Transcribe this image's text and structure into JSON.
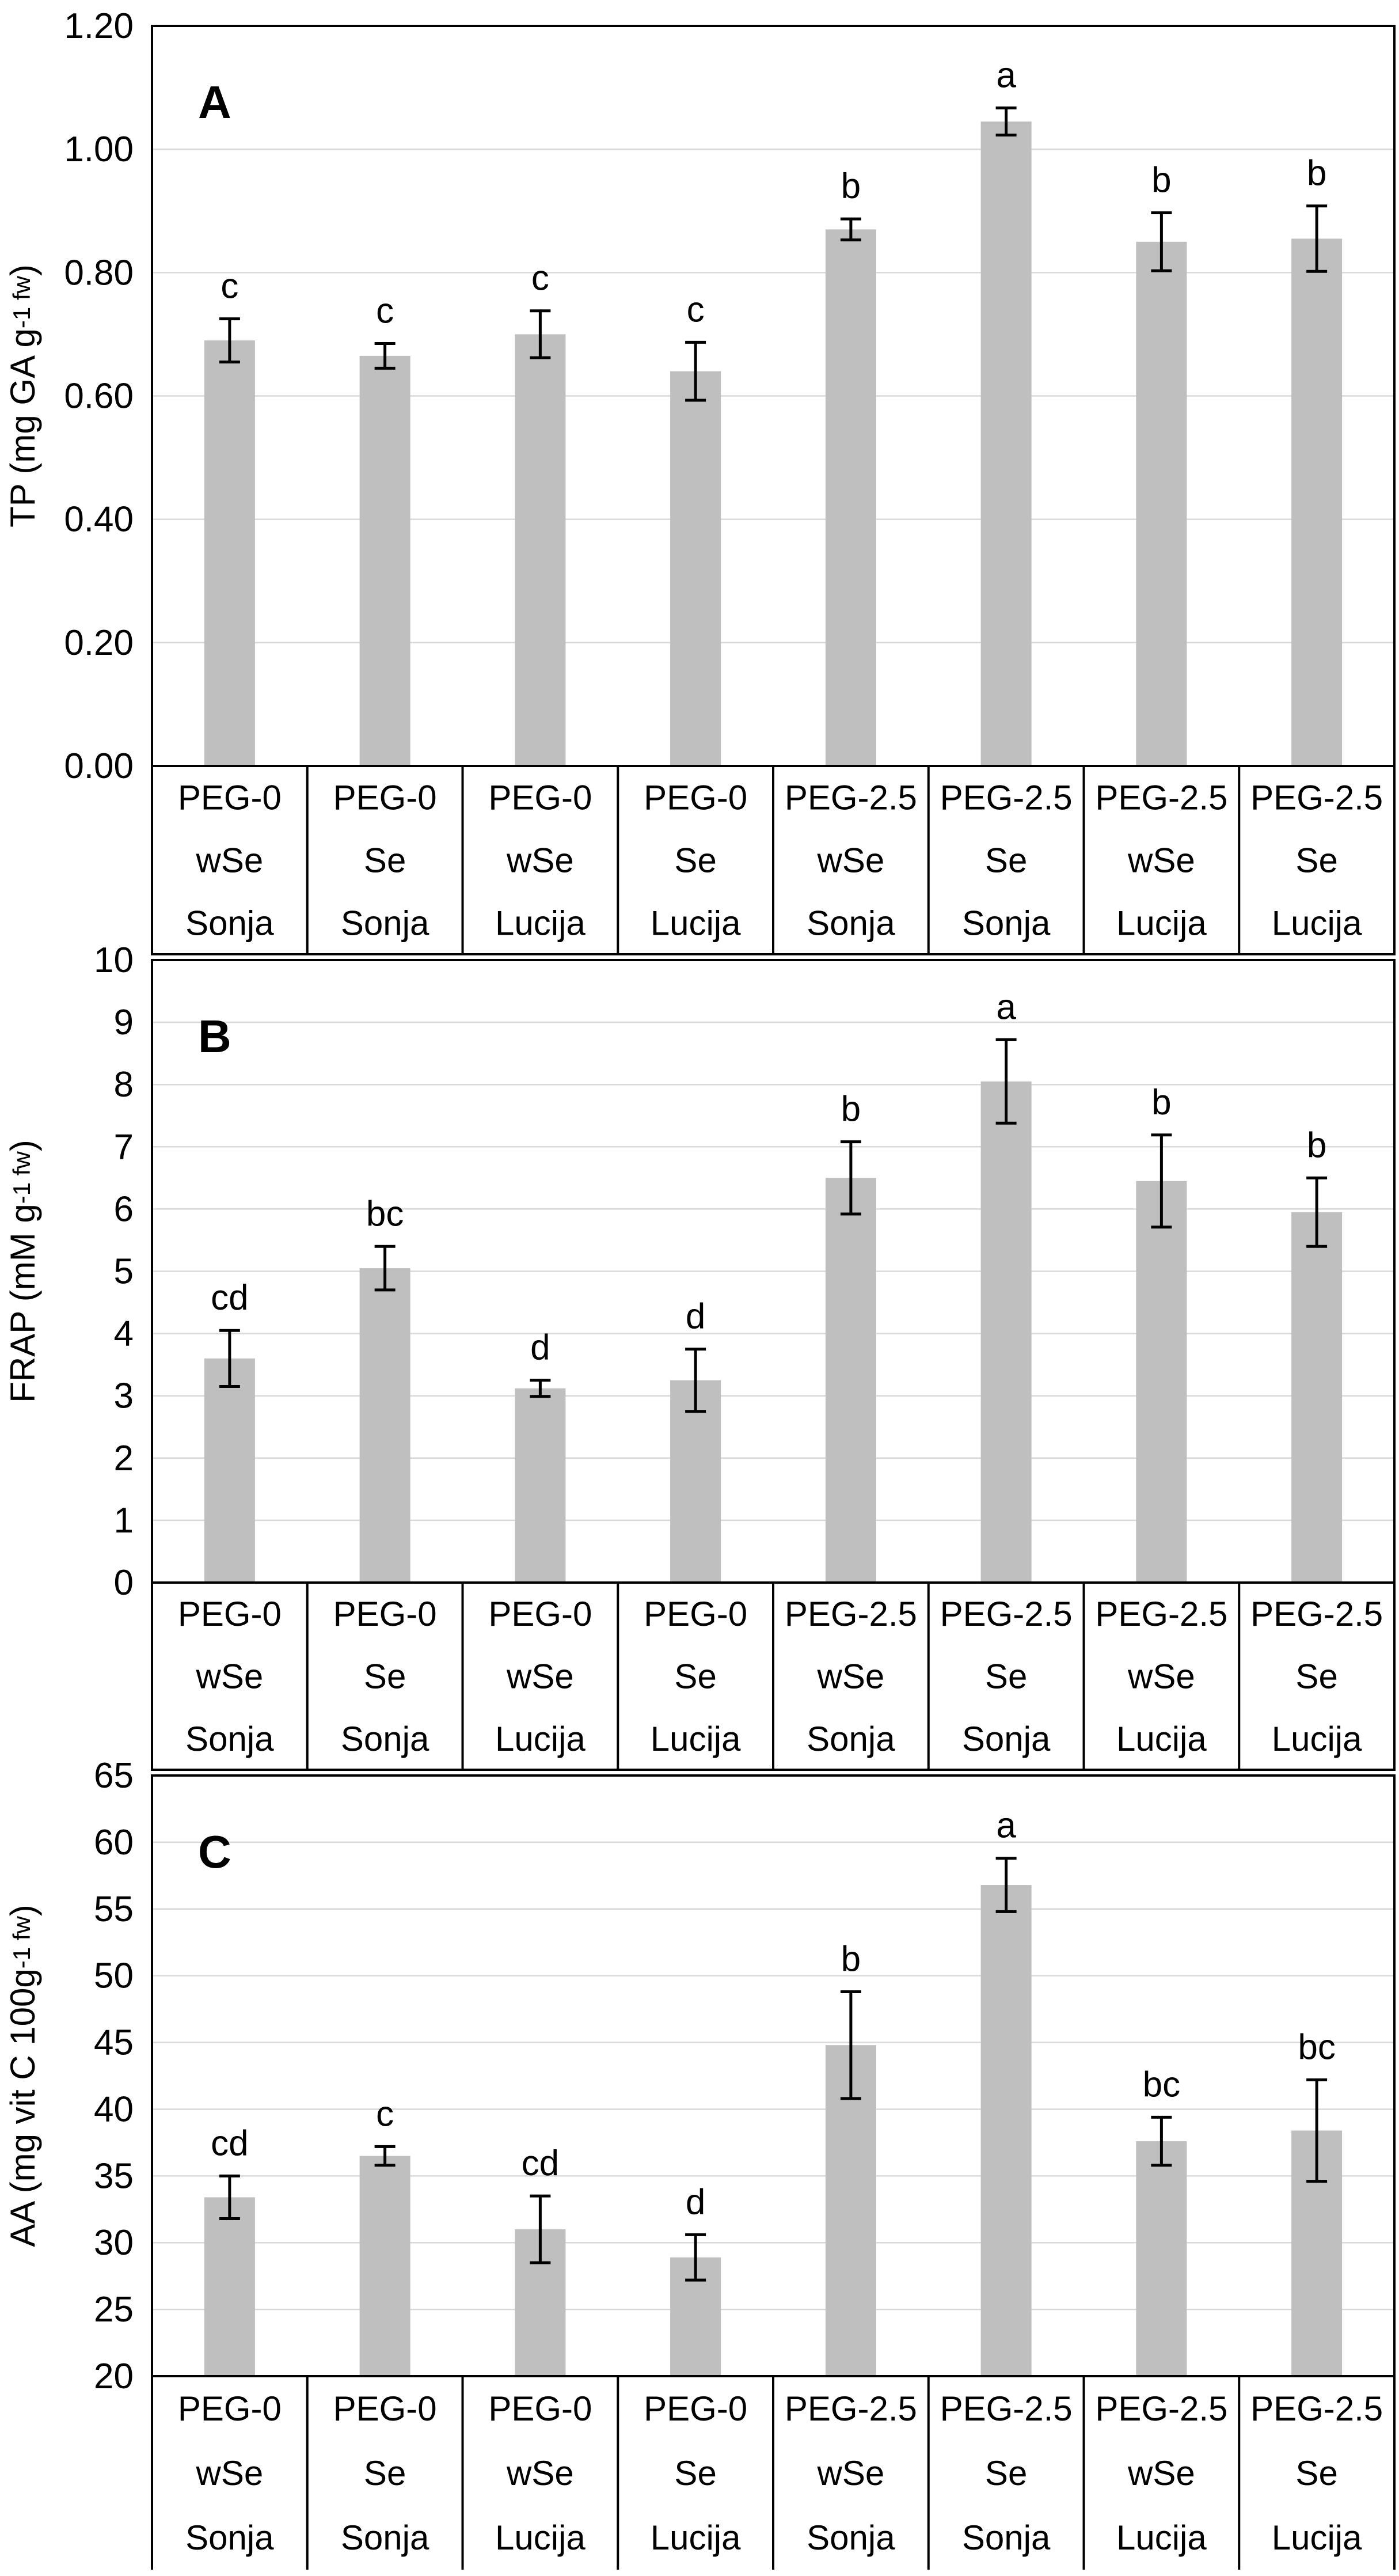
{
  "colors": {
    "bar": "#bfbfbf",
    "grid": "#d9d9d9",
    "axis": "#000000",
    "text": "#000000",
    "background": "#ffffff"
  },
  "chart_data": [
    {
      "type": "bar",
      "panel_label": "A",
      "ylabel": "TP (mg GA g-1 fw)",
      "ylabel_parts": {
        "base": "TP (mg GA g",
        "small": "-1 fw",
        "close": ")"
      },
      "ylim": [
        0,
        1.2
      ],
      "ytick_labels": [
        "0.00",
        "0.20",
        "0.40",
        "0.60",
        "0.80",
        "1.00",
        "1.20"
      ],
      "grid": true,
      "legend": "none",
      "bar_color": "#bfbfbf",
      "categories": [
        {
          "treatment": "PEG-0",
          "selenium": "wSe",
          "cultivar": "Sonja"
        },
        {
          "treatment": "PEG-0",
          "selenium": "Se",
          "cultivar": "Sonja"
        },
        {
          "treatment": "PEG-0",
          "selenium": "wSe",
          "cultivar": "Lucija"
        },
        {
          "treatment": "PEG-0",
          "selenium": "Se",
          "cultivar": "Lucija"
        },
        {
          "treatment": "PEG-2.5",
          "selenium": "wSe",
          "cultivar": "Sonja"
        },
        {
          "treatment": "PEG-2.5",
          "selenium": "Se",
          "cultivar": "Sonja"
        },
        {
          "treatment": "PEG-2.5",
          "selenium": "wSe",
          "cultivar": "Lucija"
        },
        {
          "treatment": "PEG-2.5",
          "selenium": "Se",
          "cultivar": "Lucija"
        }
      ],
      "values": [
        0.69,
        0.665,
        0.7,
        0.64,
        0.87,
        1.045,
        0.85,
        0.855
      ],
      "errors": [
        0.035,
        0.02,
        0.038,
        0.047,
        0.017,
        0.022,
        0.047,
        0.053
      ],
      "sig_letters": [
        "c",
        "c",
        "c",
        "c",
        "b",
        "a",
        "b",
        "b"
      ]
    },
    {
      "type": "bar",
      "panel_label": "B",
      "ylabel": "FRAP (mM g-1 fw)",
      "ylabel_parts": {
        "base": "FRAP (mM g",
        "small": "-1 fw",
        "close": ")"
      },
      "ylim": [
        0,
        10
      ],
      "ytick_labels": [
        "0",
        "1",
        "2",
        "3",
        "4",
        "5",
        "6",
        "7",
        "8",
        "9",
        "10"
      ],
      "grid": true,
      "legend": "none",
      "bar_color": "#bfbfbf",
      "categories": [
        {
          "treatment": "PEG-0",
          "selenium": "wSe",
          "cultivar": "Sonja"
        },
        {
          "treatment": "PEG-0",
          "selenium": "Se",
          "cultivar": "Sonja"
        },
        {
          "treatment": "PEG-0",
          "selenium": "wSe",
          "cultivar": "Lucija"
        },
        {
          "treatment": "PEG-0",
          "selenium": "Se",
          "cultivar": "Lucija"
        },
        {
          "treatment": "PEG-2.5",
          "selenium": "wSe",
          "cultivar": "Sonja"
        },
        {
          "treatment": "PEG-2.5",
          "selenium": "Se",
          "cultivar": "Sonja"
        },
        {
          "treatment": "PEG-2.5",
          "selenium": "wSe",
          "cultivar": "Lucija"
        },
        {
          "treatment": "PEG-2.5",
          "selenium": "Se",
          "cultivar": "Lucija"
        }
      ],
      "values": [
        3.6,
        5.05,
        3.12,
        3.25,
        6.5,
        8.05,
        6.45,
        5.95
      ],
      "errors": [
        0.45,
        0.35,
        0.13,
        0.5,
        0.58,
        0.67,
        0.74,
        0.55
      ],
      "sig_letters": [
        "cd",
        "bc",
        "d",
        "d",
        "b",
        "a",
        "b",
        "b"
      ]
    },
    {
      "type": "bar",
      "panel_label": "C",
      "ylabel": "AA (mg vit C 100g-1 fw)",
      "ylabel_parts": {
        "base": "AA (mg vit C 100g",
        "small": "-1 fw",
        "close": ")"
      },
      "ylim": [
        20,
        65
      ],
      "ytick_labels": [
        "20",
        "25",
        "30",
        "35",
        "40",
        "45",
        "50",
        "55",
        "60",
        "65"
      ],
      "grid": true,
      "legend": "none",
      "bar_color": "#bfbfbf",
      "categories": [
        {
          "treatment": "PEG-0",
          "selenium": "wSe",
          "cultivar": "Sonja"
        },
        {
          "treatment": "PEG-0",
          "selenium": "Se",
          "cultivar": "Sonja"
        },
        {
          "treatment": "PEG-0",
          "selenium": "wSe",
          "cultivar": "Lucija"
        },
        {
          "treatment": "PEG-0",
          "selenium": "Se",
          "cultivar": "Lucija"
        },
        {
          "treatment": "PEG-2.5",
          "selenium": "wSe",
          "cultivar": "Sonja"
        },
        {
          "treatment": "PEG-2.5",
          "selenium": "Se",
          "cultivar": "Sonja"
        },
        {
          "treatment": "PEG-2.5",
          "selenium": "wSe",
          "cultivar": "Lucija"
        },
        {
          "treatment": "PEG-2.5",
          "selenium": "Se",
          "cultivar": "Lucija"
        }
      ],
      "values": [
        33.4,
        36.5,
        31.0,
        28.9,
        44.8,
        56.8,
        37.6,
        38.4
      ],
      "errors": [
        1.6,
        0.7,
        2.5,
        1.7,
        4.0,
        2.0,
        1.8,
        3.8
      ],
      "sig_letters": [
        "cd",
        "c",
        "cd",
        "d",
        "b",
        "a",
        "bc",
        "bc"
      ]
    }
  ]
}
